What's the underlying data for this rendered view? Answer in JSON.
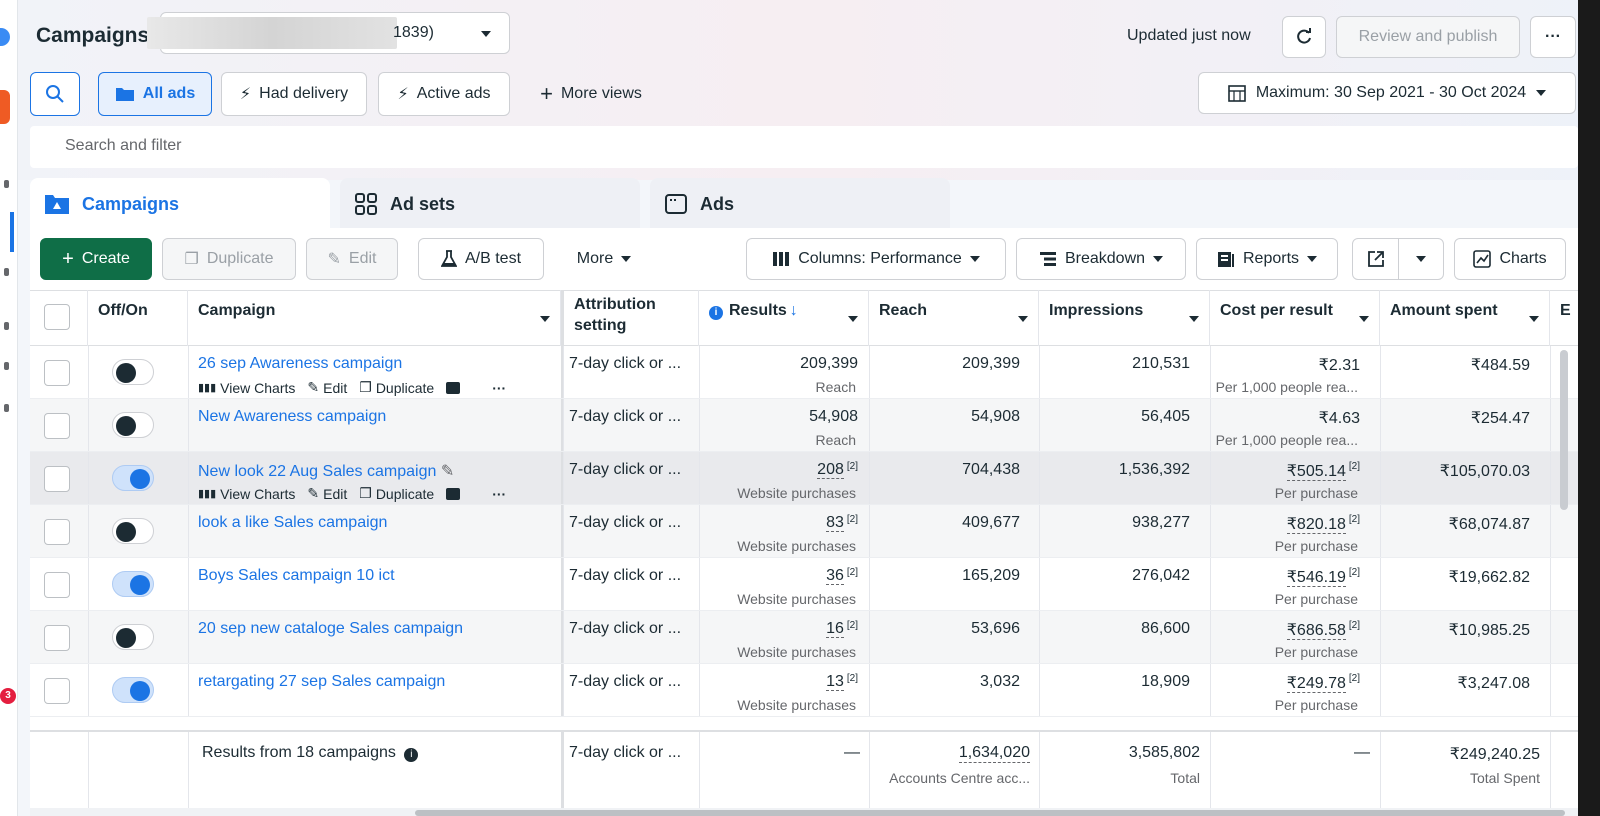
{
  "header": {
    "title": "Campaigns",
    "account_id_suffix": "1839)",
    "updated_text": "Updated just now",
    "review_publish": "Review and publish",
    "more_menu": "···"
  },
  "views": {
    "all_ads": "All ads",
    "had_delivery": "Had delivery",
    "active_ads": "Active ads",
    "more_views": "More views",
    "date_range": "Maximum: 30 Sep 2021 - 30 Oct 2024"
  },
  "search": {
    "placeholder": "Search and filter"
  },
  "tabs": {
    "campaigns": "Campaigns",
    "ad_sets": "Ad sets",
    "ads": "Ads"
  },
  "toolbar": {
    "create": "Create",
    "duplicate": "Duplicate",
    "edit": "Edit",
    "ab_test": "A/B test",
    "more": "More",
    "columns": "Columns: Performance",
    "breakdown": "Breakdown",
    "reports": "Reports",
    "charts": "Charts"
  },
  "table": {
    "headers": {
      "off_on": "Off/On",
      "campaign": "Campaign",
      "attribution": "Attribution setting",
      "results": "Results",
      "reach": "Reach",
      "impressions": "Impressions",
      "cost_per_result": "Cost per result",
      "amount_spent": "Amount spent",
      "next": "E"
    },
    "row_actions": {
      "view_charts": "View Charts",
      "edit": "Edit",
      "duplicate": "Duplicate",
      "more": "···"
    },
    "rows": [
      {
        "name": "26 sep Awareness campaign",
        "on": false,
        "attribution": "7-day click or ...",
        "results": "209,399",
        "results_sub": "Reach",
        "reach": "209,399",
        "impressions": "210,531",
        "cpr": "₹2.31",
        "cpr_sub": "Per 1,000 people rea...",
        "spent": "₹484.59"
      },
      {
        "name": "New Awareness campaign",
        "on": false,
        "attribution": "7-day click or ...",
        "results": "54,908",
        "results_sub": "Reach",
        "reach": "54,908",
        "impressions": "56,405",
        "cpr": "₹4.63",
        "cpr_sub": "Per 1,000 people rea...",
        "spent": "₹254.47"
      },
      {
        "name": "New look 22 Aug Sales campaign",
        "on": true,
        "attribution": "7-day click or ...",
        "results": "208",
        "results_sub": "Website purchases",
        "reach": "704,438",
        "impressions": "1,536,392",
        "cpr": "₹505.14",
        "cpr_sub": "Per purchase",
        "spent": "₹105,070.03"
      },
      {
        "name": "look a like Sales campaign",
        "on": false,
        "attribution": "7-day click or ...",
        "results": "83",
        "results_sub": "Website purchases",
        "reach": "409,677",
        "impressions": "938,277",
        "cpr": "₹820.18",
        "cpr_sub": "Per purchase",
        "spent": "₹68,074.87"
      },
      {
        "name": "Boys Sales campaign 10 ict",
        "on": true,
        "attribution": "7-day click or ...",
        "results": "36",
        "results_sub": "Website purchases",
        "reach": "165,209",
        "impressions": "276,042",
        "cpr": "₹546.19",
        "cpr_sub": "Per purchase",
        "spent": "₹19,662.82"
      },
      {
        "name": "20 sep new cataloge Sales campaign",
        "on": false,
        "attribution": "7-day click or ...",
        "results": "16",
        "results_sub": "Website purchases",
        "reach": "53,696",
        "impressions": "86,600",
        "cpr": "₹686.58",
        "cpr_sub": "Per purchase",
        "spent": "₹10,985.25"
      },
      {
        "name": "retargating 27 sep Sales campaign",
        "on": true,
        "attribution": "7-day click or ...",
        "results": "13",
        "results_sub": "Website purchases",
        "reach": "3,032",
        "impressions": "18,909",
        "cpr": "₹249.78",
        "cpr_sub": "Per purchase",
        "spent": "₹3,247.08"
      }
    ],
    "footnote_marker": "[2]",
    "footer": {
      "label": "Results from 18 campaigns",
      "attribution": "7-day click or ...",
      "results": "—",
      "reach": "1,634,020",
      "reach_sub": "Accounts Centre acc...",
      "impressions": "3,585,802",
      "impressions_sub": "Total",
      "cpr": "—",
      "spent": "₹249,240.25",
      "spent_sub": "Total Spent"
    }
  },
  "rail": {
    "badge": "3"
  },
  "colors": {
    "accent": "#1b74e4",
    "create_green": "#0f6e47"
  }
}
